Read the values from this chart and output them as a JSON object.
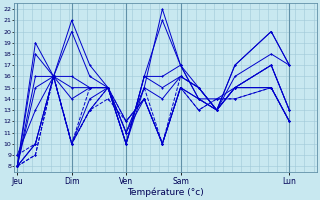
{
  "xlabel": "Température (°c)",
  "bg_color": "#c8e8f0",
  "line_color": "#0000cc",
  "grid_color": "#a0c8d8",
  "separator_color": "#6090a8",
  "ylim": [
    7.5,
    22.5
  ],
  "yticks": [
    8,
    9,
    10,
    11,
    12,
    13,
    14,
    15,
    16,
    17,
    18,
    19,
    20,
    21,
    22
  ],
  "day_labels": [
    "Jeu",
    "Dim",
    "Ven",
    "Sam",
    "Lun"
  ],
  "day_x": [
    0,
    36,
    72,
    108,
    180
  ],
  "xlim": [
    -2,
    198
  ],
  "series": [
    {
      "y": [
        8,
        19,
        16,
        21,
        17,
        15,
        10,
        15,
        22,
        17,
        14,
        13,
        17,
        20,
        17
      ],
      "ls": "-",
      "lw": 0.7
    },
    {
      "y": [
        8,
        18,
        16,
        20,
        16,
        15,
        10,
        16,
        21,
        17,
        14,
        13,
        17,
        20,
        17
      ],
      "ls": "-",
      "lw": 0.7
    },
    {
      "y": [
        8,
        16,
        16,
        16,
        15,
        15,
        10,
        16,
        16,
        17,
        15,
        13,
        16,
        18,
        17
      ],
      "ls": "-",
      "lw": 0.7
    },
    {
      "y": [
        8,
        15,
        16,
        15,
        15,
        15,
        10,
        16,
        15,
        16,
        15,
        13,
        15,
        17,
        13
      ],
      "ls": "-",
      "lw": 0.7
    },
    {
      "y": [
        9,
        13,
        16,
        14,
        15,
        15,
        11,
        15,
        14,
        16,
        15,
        13,
        15,
        17,
        13
      ],
      "ls": "-",
      "lw": 0.7
    },
    {
      "y": [
        9,
        10,
        16,
        10,
        15,
        15,
        11,
        15,
        10,
        16,
        15,
        13,
        15,
        17,
        13
      ],
      "ls": "--",
      "lw": 0.7
    },
    {
      "y": [
        8,
        10,
        16,
        10,
        14,
        15,
        11,
        14,
        10,
        15,
        14,
        13,
        15,
        15,
        12
      ],
      "ls": "-",
      "lw": 0.7
    },
    {
      "y": [
        8,
        10,
        16,
        10,
        13,
        15,
        12,
        14,
        10,
        15,
        14,
        14,
        15,
        15,
        12
      ],
      "ls": "-",
      "lw": 0.7
    },
    {
      "y": [
        8,
        9,
        16,
        10,
        13,
        15,
        12,
        14,
        10,
        15,
        13,
        14,
        14,
        15,
        12
      ],
      "ls": "--",
      "lw": 0.7
    },
    {
      "y": [
        8,
        9,
        16,
        10,
        13,
        14,
        12,
        14,
        10,
        15,
        13,
        14,
        14,
        15,
        12
      ],
      "ls": "--",
      "lw": 0.7
    }
  ],
  "x_positions": [
    0,
    12,
    24,
    36,
    48,
    60,
    72,
    84,
    96,
    108,
    120,
    132,
    144,
    168,
    180
  ],
  "fine_grid_step": 6,
  "marker": "+",
  "marker_size": 2.0
}
